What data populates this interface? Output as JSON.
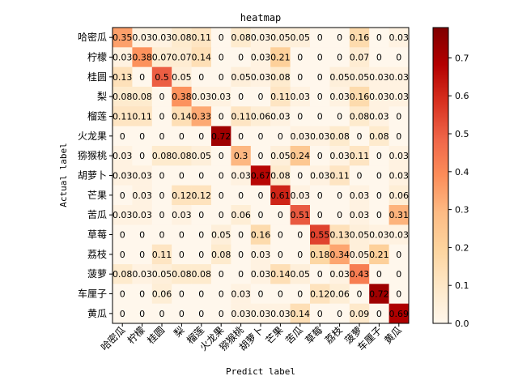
{
  "chart_data": {
    "type": "heatmap",
    "title": "heatmap",
    "xlabel": "Predict label",
    "ylabel": "Actual label",
    "labels": [
      "哈密瓜",
      "柠檬",
      "桂圆",
      "梨",
      "榴莲",
      "火龙果",
      "猕猴桃",
      "胡萝卜",
      "芒果",
      "苦瓜",
      "草莓",
      "荔枝",
      "菠萝",
      "车厘子",
      "黄瓜"
    ],
    "matrix": [
      [
        0.35,
        0.03,
        0.03,
        0.08,
        0.11,
        0.0,
        0.08,
        0.03,
        0.05,
        0.05,
        0.0,
        0.0,
        0.16,
        0.0,
        0.03
      ],
      [
        0.03,
        0.38,
        0.07,
        0.07,
        0.14,
        0.0,
        0.0,
        0.03,
        0.21,
        0.0,
        0.0,
        0.0,
        0.07,
        0.0,
        0.0
      ],
      [
        0.13,
        0.0,
        0.5,
        0.05,
        0.0,
        0.0,
        0.05,
        0.03,
        0.08,
        0.0,
        0.0,
        0.05,
        0.05,
        0.03,
        0.03
      ],
      [
        0.08,
        0.08,
        0.0,
        0.38,
        0.03,
        0.03,
        0.0,
        0.0,
        0.11,
        0.03,
        0.0,
        0.03,
        0.16,
        0.03,
        0.03
      ],
      [
        0.11,
        0.11,
        0.0,
        0.14,
        0.33,
        0.0,
        0.11,
        0.06,
        0.03,
        0.0,
        0.0,
        0.0,
        0.08,
        0.03,
        0.0
      ],
      [
        0.0,
        0.0,
        0.0,
        0.0,
        0.0,
        0.72,
        0.0,
        0.0,
        0.0,
        0.03,
        0.03,
        0.08,
        0.0,
        0.08,
        0.0
      ],
      [
        0.03,
        0.0,
        0.08,
        0.08,
        0.05,
        0.0,
        0.3,
        0.0,
        0.05,
        0.24,
        0.0,
        0.03,
        0.11,
        0.0,
        0.03
      ],
      [
        0.03,
        0.03,
        0.0,
        0.0,
        0.0,
        0.0,
        0.03,
        0.67,
        0.08,
        0.0,
        0.03,
        0.11,
        0.0,
        0.0,
        0.03
      ],
      [
        0.0,
        0.03,
        0.0,
        0.12,
        0.12,
        0.0,
        0.0,
        0.0,
        0.61,
        0.03,
        0.0,
        0.0,
        0.03,
        0.0,
        0.06
      ],
      [
        0.03,
        0.03,
        0.0,
        0.03,
        0.0,
        0.0,
        0.06,
        0.0,
        0.0,
        0.51,
        0.0,
        0.0,
        0.03,
        0.0,
        0.31
      ],
      [
        0.0,
        0.0,
        0.0,
        0.0,
        0.0,
        0.05,
        0.0,
        0.16,
        0.0,
        0.0,
        0.55,
        0.13,
        0.05,
        0.03,
        0.03
      ],
      [
        0.0,
        0.0,
        0.11,
        0.0,
        0.0,
        0.08,
        0.0,
        0.03,
        0.0,
        0.0,
        0.18,
        0.34,
        0.05,
        0.21,
        0.0
      ],
      [
        0.08,
        0.03,
        0.05,
        0.08,
        0.08,
        0.0,
        0.0,
        0.03,
        0.14,
        0.05,
        0.0,
        0.03,
        0.43,
        0.0,
        0.0
      ],
      [
        0.0,
        0.0,
        0.06,
        0.0,
        0.0,
        0.0,
        0.03,
        0.0,
        0.0,
        0.0,
        0.12,
        0.06,
        0.0,
        0.72,
        0.0
      ],
      [
        0.0,
        0.0,
        0.0,
        0.0,
        0.0,
        0.0,
        0.03,
        0.03,
        0.03,
        0.14,
        0.0,
        0.0,
        0.09,
        0.0,
        0.69
      ]
    ],
    "colorbar": {
      "min": 0,
      "max": 0.78,
      "ticks": [
        0.0,
        0.1,
        0.2,
        0.3,
        0.4,
        0.5,
        0.6,
        0.7
      ],
      "colormap": "OrRd"
    },
    "grid": false,
    "legend": "colorbar-right"
  },
  "colors": {
    "background": "#ffffff",
    "text": "#000000",
    "axis": "#000000",
    "cell_text": "#000000"
  }
}
